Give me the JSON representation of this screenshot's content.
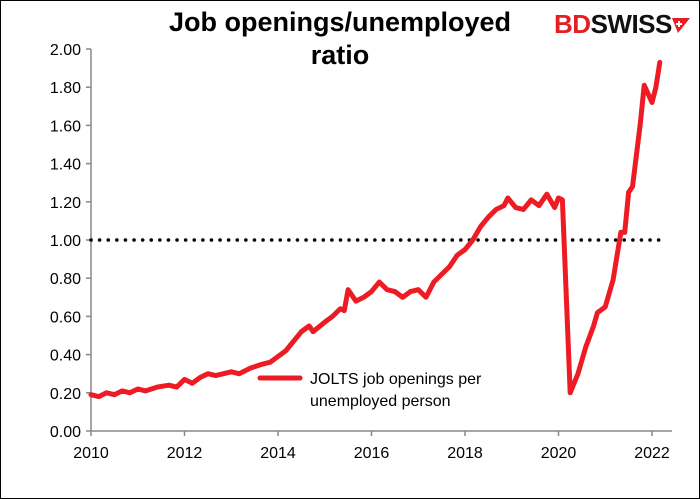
{
  "title_lines": [
    "Job openings/unemployed",
    "ratio"
  ],
  "logo": {
    "text_red": "BD",
    "text_black": "SWISS"
  },
  "chart_data": {
    "type": "line",
    "title": "Job openings/unemployed ratio",
    "xlabel": "",
    "ylabel": "",
    "xlim": [
      2010,
      2022
    ],
    "ylim": [
      0,
      2.0
    ],
    "x_ticks": [
      "2010",
      "2012",
      "2014",
      "2016",
      "2018",
      "2020",
      "2022"
    ],
    "y_ticks": [
      "0.00",
      "0.20",
      "0.40",
      "0.60",
      "0.80",
      "1.00",
      "1.20",
      "1.40",
      "1.60",
      "1.80",
      "2.00"
    ],
    "grid": false,
    "legend": {
      "position": "bottom-center",
      "lines": [
        "JOLTS job openings per",
        "unemployed person"
      ]
    },
    "reference_line": {
      "y": 1.0,
      "style": "dotted",
      "color": "#000000"
    },
    "series": [
      {
        "name": "JOLTS job openings per unemployed person",
        "color": "#ed1c24",
        "points": [
          [
            "2010-01",
            0.19
          ],
          [
            "2010-03",
            0.18
          ],
          [
            "2010-05",
            0.2
          ],
          [
            "2010-07",
            0.19
          ],
          [
            "2010-09",
            0.21
          ],
          [
            "2010-11",
            0.2
          ],
          [
            "2011-01",
            0.22
          ],
          [
            "2011-03",
            0.21
          ],
          [
            "2011-06",
            0.23
          ],
          [
            "2011-09",
            0.24
          ],
          [
            "2011-11",
            0.23
          ],
          [
            "2012-01",
            0.27
          ],
          [
            "2012-03",
            0.25
          ],
          [
            "2012-05",
            0.28
          ],
          [
            "2012-07",
            0.3
          ],
          [
            "2012-09",
            0.29
          ],
          [
            "2012-11",
            0.3
          ],
          [
            "2013-01",
            0.31
          ],
          [
            "2013-03",
            0.3
          ],
          [
            "2013-06",
            0.33
          ],
          [
            "2013-09",
            0.35
          ],
          [
            "2013-11",
            0.36
          ],
          [
            "2014-01",
            0.39
          ],
          [
            "2014-03",
            0.42
          ],
          [
            "2014-05",
            0.47
          ],
          [
            "2014-07",
            0.52
          ],
          [
            "2014-09",
            0.55
          ],
          [
            "2014-10",
            0.52
          ],
          [
            "2015-01",
            0.57
          ],
          [
            "2015-03",
            0.6
          ],
          [
            "2015-05",
            0.64
          ],
          [
            "2015-06",
            0.63
          ],
          [
            "2015-07",
            0.74
          ],
          [
            "2015-09",
            0.68
          ],
          [
            "2015-11",
            0.7
          ],
          [
            "2016-01",
            0.73
          ],
          [
            "2016-03",
            0.78
          ],
          [
            "2016-05",
            0.74
          ],
          [
            "2016-07",
            0.73
          ],
          [
            "2016-09",
            0.7
          ],
          [
            "2016-11",
            0.73
          ],
          [
            "2017-01",
            0.74
          ],
          [
            "2017-03",
            0.7
          ],
          [
            "2017-05",
            0.78
          ],
          [
            "2017-07",
            0.82
          ],
          [
            "2017-09",
            0.86
          ],
          [
            "2017-11",
            0.92
          ],
          [
            "2018-01",
            0.95
          ],
          [
            "2018-03",
            1.0
          ],
          [
            "2018-05",
            1.07
          ],
          [
            "2018-07",
            1.12
          ],
          [
            "2018-09",
            1.16
          ],
          [
            "2018-11",
            1.18
          ],
          [
            "2018-12",
            1.22
          ],
          [
            "2019-02",
            1.17
          ],
          [
            "2019-04",
            1.16
          ],
          [
            "2019-06",
            1.21
          ],
          [
            "2019-08",
            1.18
          ],
          [
            "2019-10",
            1.24
          ],
          [
            "2019-12",
            1.17
          ],
          [
            "2020-01",
            1.22
          ],
          [
            "2020-02",
            1.21
          ],
          [
            "2020-04",
            0.2
          ],
          [
            "2020-06",
            0.3
          ],
          [
            "2020-08",
            0.44
          ],
          [
            "2020-10",
            0.55
          ],
          [
            "2020-11",
            0.62
          ],
          [
            "2021-01",
            0.65
          ],
          [
            "2021-03",
            0.79
          ],
          [
            "2021-05",
            1.04
          ],
          [
            "2021-06",
            1.04
          ],
          [
            "2021-07",
            1.25
          ],
          [
            "2021-08",
            1.28
          ],
          [
            "2021-10",
            1.61
          ],
          [
            "2021-11",
            1.81
          ],
          [
            "2022-01",
            1.72
          ],
          [
            "2022-02",
            1.8
          ],
          [
            "2022-03",
            1.93
          ]
        ]
      }
    ]
  }
}
